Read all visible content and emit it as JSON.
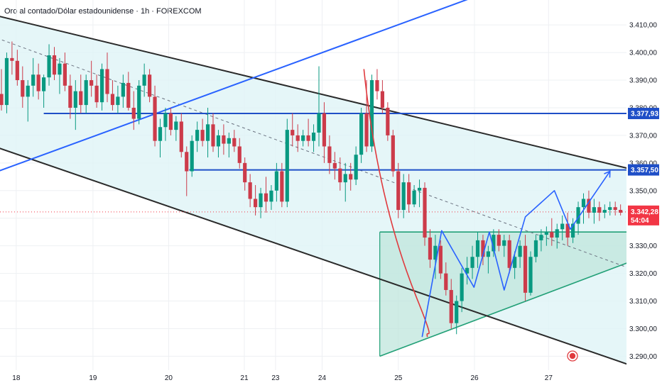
{
  "title": "Oro al contado/Dólar estadounidense · 1h · FOREXCOM",
  "colors": {
    "up": "#089981",
    "down": "#cc3b4a",
    "channel_line": "#2a2a2a",
    "channel_fill": "#dff4f6",
    "blue": "#2962ff",
    "blue_line": "#1f4fc7",
    "triangle_fill": "#bfe6dc",
    "triangle_line": "#22a077",
    "curve": "#e03a3e",
    "price_red": "#f23645",
    "grid": "#eef0f3"
  },
  "chart_data": {
    "type": "candlestick",
    "ylim": [
      3286,
      3418
    ],
    "y_ticks": [
      "3.410,00",
      "3.400,00",
      "3.390,00",
      "3.380,00",
      "3.370,00",
      "3.360,00",
      "3.350,00",
      "3.340,00",
      "3.330,00",
      "3.320,00",
      "3.310,00",
      "3.300,00",
      "3.290,00"
    ],
    "y_tick_values": [
      3410,
      3400,
      3390,
      3380,
      3370,
      3360,
      3350,
      3340,
      3330,
      3320,
      3310,
      3300,
      3290
    ],
    "x_ticks": [
      "18",
      "19",
      "20",
      "21",
      "23",
      "24",
      "25",
      "26",
      "27"
    ],
    "x_tick_pos": [
      2.8,
      17.3,
      31.6,
      45.9,
      51.8,
      60.6,
      75.0,
      89.4,
      103.4
    ],
    "bar_count": 118,
    "levels": [
      {
        "label": "3.377,93",
        "value": 3377.93,
        "start_bar": 8
      },
      {
        "label": "3.357,50",
        "value": 3357.5,
        "start_bar": 35.5
      }
    ],
    "last_price": {
      "label": "3.342,28",
      "value": 3342.28,
      "countdown": "54:04"
    },
    "channel_upper": [
      [
        -12,
        3418.5
      ],
      [
        118.5,
        3358
      ]
    ],
    "channel_lower": [
      [
        -12,
        3373
      ],
      [
        118.5,
        3287
      ]
    ],
    "channel_mid": [
      [
        -12,
        3413
      ],
      [
        118.5,
        3322
      ]
    ],
    "blue_trendline": [
      [
        -12,
        3349
      ],
      [
        92,
        3422
      ]
    ],
    "triangle": [
      [
        71.5,
        3335
      ],
      [
        118.5,
        3335
      ],
      [
        118.5,
        3324
      ],
      [
        71.5,
        3290
      ]
    ],
    "projection": [
      [
        79.5,
        3297
      ],
      [
        83.2,
        3335.5
      ],
      [
        89.3,
        3315
      ],
      [
        92.2,
        3335
      ],
      [
        95,
        3314
      ],
      [
        99,
        3340.5
      ],
      [
        104.5,
        3350
      ],
      [
        107.5,
        3336
      ],
      [
        115,
        3357
      ]
    ],
    "curve": [
      [
        68.5,
        3394
      ],
      [
        70.5,
        3357
      ],
      [
        74.5,
        3330
      ],
      [
        78.5,
        3311
      ],
      [
        80.5,
        3297
      ]
    ],
    "candles": [
      [
        3385,
        3394,
        3379,
        3381
      ],
      [
        3381,
        3400,
        3378,
        3398
      ],
      [
        3398,
        3404,
        3392,
        3397
      ],
      [
        3397,
        3401,
        3388,
        3390
      ],
      [
        3390,
        3395,
        3380,
        3384
      ],
      [
        3384,
        3390,
        3375,
        3388
      ],
      [
        3388,
        3398,
        3384,
        3392
      ],
      [
        3392,
        3396,
        3383,
        3386
      ],
      [
        3386,
        3392,
        3380,
        3391
      ],
      [
        3391,
        3403,
        3388,
        3399
      ],
      [
        3399,
        3402,
        3390,
        3392
      ],
      [
        3392,
        3398,
        3385,
        3396
      ],
      [
        3396,
        3400,
        3386,
        3388
      ],
      [
        3388,
        3392,
        3376,
        3380
      ],
      [
        3380,
        3390,
        3372,
        3386
      ],
      [
        3386,
        3392,
        3378,
        3381
      ],
      [
        3381,
        3392,
        3378,
        3390
      ],
      [
        3390,
        3397,
        3384,
        3388
      ],
      [
        3388,
        3392,
        3380,
        3382
      ],
      [
        3382,
        3396,
        3379,
        3394
      ],
      [
        3394,
        3400,
        3382,
        3385
      ],
      [
        3385,
        3390,
        3379,
        3381
      ],
      [
        3381,
        3388,
        3378,
        3384
      ],
      [
        3384,
        3392,
        3380,
        3389
      ],
      [
        3389,
        3393,
        3379,
        3380
      ],
      [
        3380,
        3386,
        3372,
        3376
      ],
      [
        3376,
        3390,
        3374,
        3388
      ],
      [
        3388,
        3396,
        3384,
        3392
      ],
      [
        3392,
        3394,
        3382,
        3384
      ],
      [
        3384,
        3388,
        3366,
        3368
      ],
      [
        3368,
        3376,
        3362,
        3373
      ],
      [
        3373,
        3380,
        3368,
        3378
      ],
      [
        3378,
        3380,
        3370,
        3372
      ],
      [
        3372,
        3377,
        3368,
        3375
      ],
      [
        3375,
        3378,
        3362,
        3364
      ],
      [
        3364,
        3366,
        3348,
        3357
      ],
      [
        3357,
        3370,
        3355,
        3368
      ],
      [
        3368,
        3375,
        3364,
        3372
      ],
      [
        3372,
        3376,
        3366,
        3368
      ],
      [
        3368,
        3380,
        3362,
        3374
      ],
      [
        3374,
        3378,
        3364,
        3366
      ],
      [
        3366,
        3372,
        3362,
        3370
      ],
      [
        3370,
        3374,
        3363,
        3367
      ],
      [
        3367,
        3371,
        3362,
        3369
      ],
      [
        3369,
        3372,
        3364,
        3366
      ],
      [
        3366,
        3369,
        3358,
        3360
      ],
      [
        3360,
        3362,
        3350,
        3353
      ],
      [
        3353,
        3356,
        3344,
        3347
      ],
      [
        3347,
        3352,
        3341,
        3344
      ],
      [
        3344,
        3351,
        3340,
        3349
      ],
      [
        3349,
        3355,
        3342,
        3346
      ],
      [
        3346,
        3352,
        3343,
        3350
      ],
      [
        3350,
        3360,
        3346,
        3357
      ],
      [
        3357,
        3360,
        3344,
        3346
      ],
      [
        3346,
        3376,
        3344,
        3372
      ],
      [
        3372,
        3378,
        3366,
        3370
      ],
      [
        3370,
        3374,
        3364,
        3368
      ],
      [
        3368,
        3372,
        3366,
        3370
      ],
      [
        3370,
        3376,
        3366,
        3368
      ],
      [
        3368,
        3374,
        3364,
        3371
      ],
      [
        3371,
        3395,
        3366,
        3378
      ],
      [
        3378,
        3382,
        3360,
        3366
      ],
      [
        3366,
        3370,
        3356,
        3360
      ],
      [
        3360,
        3364,
        3354,
        3358
      ],
      [
        3358,
        3362,
        3350,
        3353
      ],
      [
        3353,
        3360,
        3346,
        3356
      ],
      [
        3356,
        3360,
        3350,
        3354
      ],
      [
        3354,
        3366,
        3352,
        3363
      ],
      [
        3363,
        3380,
        3360,
        3378
      ],
      [
        3378,
        3390,
        3364,
        3366
      ],
      [
        3366,
        3392,
        3364,
        3390
      ],
      [
        3390,
        3394,
        3383,
        3386
      ],
      [
        3386,
        3390,
        3378,
        3380
      ],
      [
        3380,
        3382,
        3368,
        3370
      ],
      [
        3370,
        3372,
        3355,
        3357
      ],
      [
        3357,
        3360,
        3340,
        3343
      ],
      [
        3343,
        3356,
        3340,
        3353
      ],
      [
        3353,
        3356,
        3342,
        3345
      ],
      [
        3345,
        3352,
        3344,
        3350
      ],
      [
        3350,
        3354,
        3344,
        3351
      ],
      [
        3351,
        3353,
        3330,
        3333
      ],
      [
        3333,
        3336,
        3322,
        3325
      ],
      [
        3325,
        3334,
        3318,
        3330
      ],
      [
        3330,
        3332,
        3318,
        3320
      ],
      [
        3320,
        3324,
        3312,
        3314
      ],
      [
        3314,
        3318,
        3300,
        3302
      ],
      [
        3302,
        3312,
        3298,
        3310
      ],
      [
        3310,
        3322,
        3306,
        3320
      ],
      [
        3320,
        3326,
        3316,
        3322
      ],
      [
        3322,
        3330,
        3318,
        3326
      ],
      [
        3326,
        3335,
        3322,
        3332
      ],
      [
        3332,
        3334,
        3323,
        3326
      ],
      [
        3326,
        3330,
        3320,
        3328
      ],
      [
        3328,
        3336,
        3326,
        3334
      ],
      [
        3334,
        3336,
        3328,
        3330
      ],
      [
        3330,
        3334,
        3326,
        3332
      ],
      [
        3332,
        3334,
        3320,
        3322
      ],
      [
        3322,
        3328,
        3318,
        3326
      ],
      [
        3326,
        3332,
        3322,
        3330
      ],
      [
        3330,
        3334,
        3310,
        3313
      ],
      [
        3313,
        3328,
        3312,
        3326
      ],
      [
        3326,
        3334,
        3324,
        3332
      ],
      [
        3332,
        3336,
        3328,
        3334
      ],
      [
        3334,
        3337,
        3330,
        3335
      ],
      [
        3335,
        3340,
        3330,
        3333
      ],
      [
        3333,
        3338,
        3329,
        3336
      ],
      [
        3336,
        3341,
        3332,
        3338
      ],
      [
        3338,
        3342,
        3330,
        3333
      ],
      [
        3333,
        3340,
        3331,
        3338
      ],
      [
        3338,
        3346,
        3334,
        3344
      ],
      [
        3344,
        3349,
        3338,
        3347
      ],
      [
        3347,
        3350,
        3340,
        3342
      ],
      [
        3342,
        3347,
        3338,
        3344
      ],
      [
        3344,
        3346,
        3339,
        3342
      ],
      [
        3342,
        3345,
        3340,
        3343
      ],
      [
        3343,
        3346,
        3341,
        3344
      ],
      [
        3344,
        3346,
        3341,
        3343
      ],
      [
        3343,
        3345,
        3341,
        3342
      ]
    ]
  }
}
